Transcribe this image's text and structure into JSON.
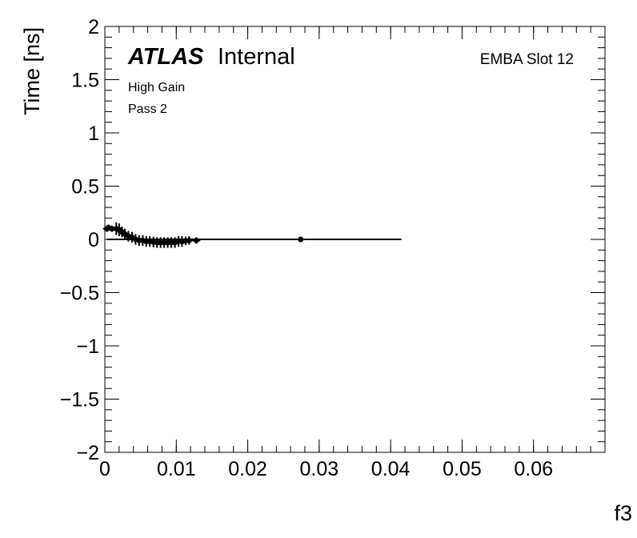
{
  "chart_data": {
    "type": "scatter",
    "title": "",
    "xlabel": "f3",
    "ylabel": "Time [ns]",
    "xlim": [
      0,
      0.07
    ],
    "ylim": [
      -2,
      2
    ],
    "x_ticks": [
      0,
      0.01,
      0.02,
      0.03,
      0.04,
      0.05,
      0.06
    ],
    "x_tick_labels": [
      "0",
      "0.01",
      "0.02",
      "0.03",
      "0.04",
      "0.05",
      "0.06"
    ],
    "y_ticks": [
      -2,
      -1.5,
      -1,
      -0.5,
      0,
      0.5,
      1,
      1.5,
      2
    ],
    "y_tick_labels": [
      "−2",
      "−1.5",
      "−1",
      "−0.5",
      "0",
      "0.5",
      "1",
      "1.5",
      "2"
    ],
    "grid": false,
    "annotations": {
      "atlas": "ATLAS",
      "internal": "Internal",
      "gain": "High Gain",
      "pass": "Pass 2",
      "module": "EMBA Slot 12"
    },
    "series": [
      {
        "points": [
          {
            "x": 0.0003,
            "y": 0.1,
            "yerr": 0.03
          },
          {
            "x": 0.0005,
            "y": 0.11,
            "yerr": 0.03
          },
          {
            "x": 0.001,
            "y": 0.1,
            "yerr": 0.03
          },
          {
            "x": 0.0016,
            "y": 0.1,
            "yerr": 0.06
          },
          {
            "x": 0.002,
            "y": 0.09,
            "yerr": 0.06
          },
          {
            "x": 0.0024,
            "y": 0.07,
            "yerr": 0.05
          },
          {
            "x": 0.0028,
            "y": 0.05,
            "yerr": 0.05
          },
          {
            "x": 0.0033,
            "y": 0.03,
            "yerr": 0.05
          },
          {
            "x": 0.0038,
            "y": 0.02,
            "yerr": 0.05
          },
          {
            "x": 0.0043,
            "y": 0.0,
            "yerr": 0.05
          },
          {
            "x": 0.0048,
            "y": -0.01,
            "yerr": 0.05
          },
          {
            "x": 0.0053,
            "y": -0.01,
            "yerr": 0.05
          },
          {
            "x": 0.0058,
            "y": -0.02,
            "yerr": 0.05
          },
          {
            "x": 0.0063,
            "y": -0.02,
            "yerr": 0.05
          },
          {
            "x": 0.0068,
            "y": -0.025,
            "yerr": 0.05
          },
          {
            "x": 0.0073,
            "y": -0.03,
            "yerr": 0.05
          },
          {
            "x": 0.0078,
            "y": -0.03,
            "yerr": 0.05
          },
          {
            "x": 0.0083,
            "y": -0.03,
            "yerr": 0.05
          },
          {
            "x": 0.0088,
            "y": -0.03,
            "yerr": 0.05
          },
          {
            "x": 0.0093,
            "y": -0.03,
            "yerr": 0.05
          },
          {
            "x": 0.0098,
            "y": -0.03,
            "yerr": 0.05
          },
          {
            "x": 0.0103,
            "y": -0.02,
            "yerr": 0.05
          },
          {
            "x": 0.0108,
            "y": -0.02,
            "yerr": 0.05
          },
          {
            "x": 0.0113,
            "y": -0.015,
            "yerr": 0.04
          },
          {
            "x": 0.0118,
            "y": -0.01,
            "yerr": 0.04
          },
          {
            "x": 0.0128,
            "y": -0.01,
            "yerr": 0.03
          },
          {
            "x": 0.0274,
            "y": 0.0,
            "yerr": 0.02
          }
        ]
      }
    ],
    "fit_line": {
      "x": [
        0.0003,
        0.0415
      ],
      "y": [
        0.0,
        0.0
      ]
    }
  }
}
